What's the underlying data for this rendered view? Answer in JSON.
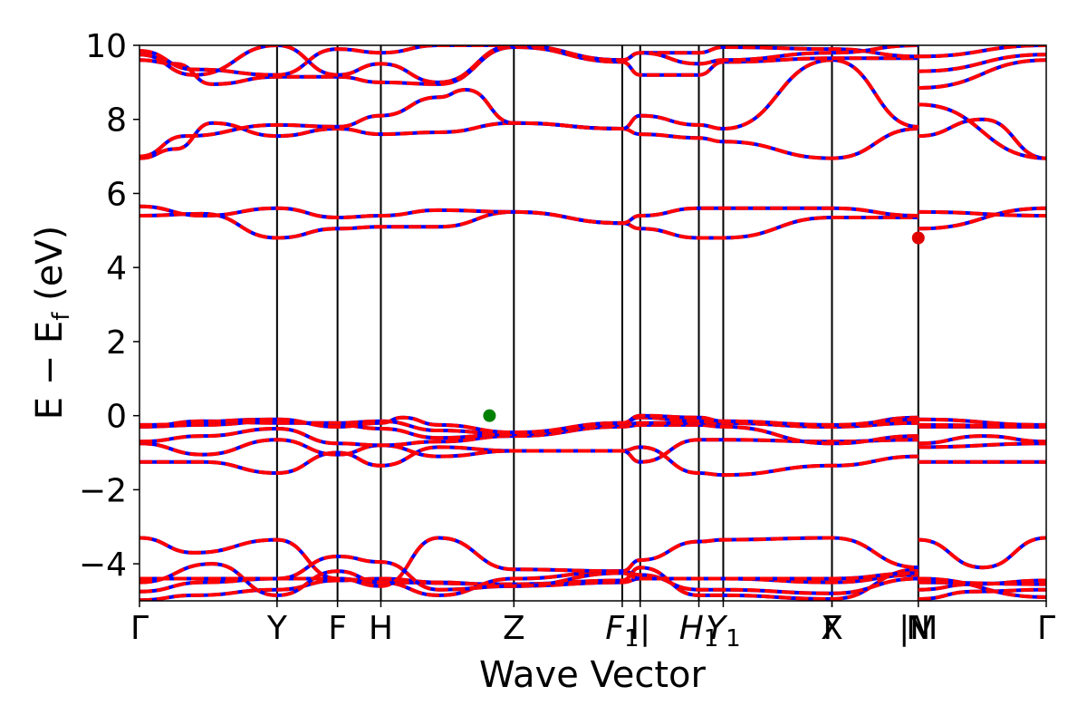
{
  "chart_data": {
    "type": "line",
    "xlabel": "Wave Vector",
    "ylabel_main": "E − E",
    "ylabel_sub": "f",
    "ylabel_unit": " (eV)",
    "ylim": [
      -5,
      10
    ],
    "yticks": [
      -4,
      -2,
      0,
      2,
      4,
      6,
      8,
      10
    ],
    "ytick_labels": [
      "−4",
      "−2",
      "0",
      "2",
      "4",
      "6",
      "8",
      "10"
    ],
    "grid": false,
    "x_range": [
      0,
      1
    ],
    "kpoints": [
      {
        "label": "Γ",
        "x": 0.0
      },
      {
        "label": "Y",
        "x": 0.1517
      },
      {
        "label": "F",
        "x": 0.2184
      },
      {
        "label": "H",
        "x": 0.2662
      },
      {
        "label": "Z",
        "x": 0.4129
      },
      {
        "label": "F",
        "sub": "1",
        "x": 0.5324
      },
      {
        "label": "I|",
        "x": 0.5522
      },
      {
        "label": "H",
        "sub": "1",
        "x": 0.6169
      },
      {
        "label": "Y",
        "sub": "1",
        "x": 0.6438
      },
      {
        "label": "X",
        "x": 0.7637
      },
      {
        "label": "Γ",
        "x": 0.7637
      },
      {
        "label": "N",
        "x": 0.8589
      },
      {
        "label": "|M",
        "x": 0.8589
      },
      {
        "label": "Γ",
        "x": 1.0
      }
    ],
    "vlines": [
      0.1517,
      0.2184,
      0.2662,
      0.4129,
      0.5324,
      0.5522,
      0.6169,
      0.6438,
      0.7637,
      0.8589
    ],
    "series_style": [
      {
        "color": "#0000ff",
        "style": "solid"
      },
      {
        "color": "#ff0000",
        "style": "dashed"
      }
    ],
    "bands": [
      [
        [
          0,
          -4.98
        ],
        [
          0.06,
          -4.85
        ],
        [
          0.1517,
          -4.7
        ],
        [
          0.2184,
          -4.45
        ],
        [
          0.2662,
          -4.4
        ],
        [
          0.33,
          -4.5
        ],
        [
          0.4129,
          -4.6
        ],
        [
          0.5324,
          -4.5
        ],
        [
          0.5522,
          -4.4
        ],
        [
          0.6169,
          -4.4
        ],
        [
          0.6438,
          -4.4
        ],
        [
          0.7637,
          -4.5
        ],
        [
          0.8589,
          -4.3
        ],
        [
          0.8589,
          -4.95
        ],
        [
          0.92,
          -4.75
        ],
        [
          1.0,
          -4.7
        ]
      ],
      [
        [
          0,
          -4.75
        ],
        [
          0.07,
          -4.5
        ],
        [
          0.1517,
          -4.4
        ],
        [
          0.2184,
          -4.4
        ],
        [
          0.2662,
          -4.5
        ],
        [
          0.4129,
          -4.55
        ],
        [
          0.5324,
          -4.45
        ],
        [
          0.5522,
          -4.1
        ],
        [
          0.6169,
          -4.85
        ],
        [
          0.6438,
          -4.85
        ],
        [
          0.7637,
          -4.95
        ],
        [
          0.8589,
          -4.15
        ],
        [
          0.8589,
          -4.7
        ],
        [
          0.92,
          -4.55
        ],
        [
          1.0,
          -4.45
        ]
      ],
      [
        [
          0,
          -4.5
        ],
        [
          0.08,
          -4.0
        ],
        [
          0.1517,
          -4.85
        ],
        [
          0.2184,
          -4.2
        ],
        [
          0.2662,
          -4.5
        ],
        [
          0.33,
          -4.85
        ],
        [
          0.4129,
          -4.4
        ],
        [
          0.5324,
          -4.2
        ],
        [
          0.5522,
          -4.3
        ],
        [
          0.6169,
          -4.7
        ],
        [
          0.6438,
          -4.7
        ],
        [
          0.7637,
          -4.8
        ],
        [
          0.8589,
          -4.4
        ],
        [
          0.8589,
          -4.4
        ],
        [
          1.0,
          -4.9
        ]
      ],
      [
        [
          0,
          -3.3
        ],
        [
          0.06,
          -3.7
        ],
        [
          0.1517,
          -3.35
        ],
        [
          0.2184,
          -4.4
        ],
        [
          0.2662,
          -4.6
        ],
        [
          0.33,
          -3.3
        ],
        [
          0.4129,
          -4.15
        ],
        [
          0.5324,
          -4.2
        ],
        [
          0.5522,
          -3.9
        ],
        [
          0.6169,
          -3.4
        ],
        [
          0.6438,
          -3.35
        ],
        [
          0.7637,
          -3.3
        ],
        [
          0.8589,
          -4.1
        ],
        [
          0.8589,
          -3.35
        ],
        [
          0.93,
          -4.1
        ],
        [
          1.0,
          -3.3
        ]
      ],
      [
        [
          0,
          -4.4
        ],
        [
          0.1517,
          -4.4
        ],
        [
          0.2184,
          -3.8
        ],
        [
          0.2662,
          -3.95
        ],
        [
          0.33,
          -4.7
        ],
        [
          0.4129,
          -4.6
        ],
        [
          0.5324,
          -4.25
        ],
        [
          0.5522,
          -4.4
        ],
        [
          0.6169,
          -4.4
        ],
        [
          0.6438,
          -4.4
        ],
        [
          0.7637,
          -4.4
        ],
        [
          0.8589,
          -4.25
        ],
        [
          0.8589,
          -4.5
        ],
        [
          1.0,
          -4.55
        ]
      ],
      [
        [
          0,
          -1.25
        ],
        [
          0.07,
          -1.25
        ],
        [
          0.1517,
          -1.55
        ],
        [
          0.2184,
          -1.0
        ],
        [
          0.2662,
          -1.35
        ],
        [
          0.33,
          -0.85
        ],
        [
          0.4129,
          -0.95
        ],
        [
          0.5324,
          -0.95
        ],
        [
          0.5522,
          -0.85
        ],
        [
          0.6169,
          -1.55
        ],
        [
          0.6438,
          -1.6
        ],
        [
          0.7637,
          -1.35
        ],
        [
          0.8589,
          -1.1
        ],
        [
          0.8589,
          -1.25
        ],
        [
          1.0,
          -1.25
        ]
      ],
      [
        [
          0,
          -0.75
        ],
        [
          0.07,
          -1.05
        ],
        [
          0.1517,
          -0.65
        ],
        [
          0.2184,
          -1.05
        ],
        [
          0.2662,
          -0.8
        ],
        [
          0.33,
          -1.1
        ],
        [
          0.4129,
          -0.95
        ],
        [
          0.5324,
          -0.95
        ],
        [
          0.5522,
          -1.25
        ],
        [
          0.6169,
          -0.65
        ],
        [
          0.6438,
          -0.65
        ],
        [
          0.7637,
          -0.7
        ],
        [
          0.8589,
          -0.65
        ],
        [
          0.8589,
          -0.75
        ],
        [
          0.93,
          -0.55
        ],
        [
          1.0,
          -0.7
        ]
      ],
      [
        [
          0,
          -0.7
        ],
        [
          0.07,
          -0.55
        ],
        [
          0.1517,
          -0.35
        ],
        [
          0.2184,
          -0.75
        ],
        [
          0.2662,
          -0.8
        ],
        [
          0.33,
          -0.7
        ],
        [
          0.4129,
          -0.55
        ],
        [
          0.5324,
          -0.3
        ],
        [
          0.5522,
          -0.25
        ],
        [
          0.6169,
          -0.25
        ],
        [
          0.6438,
          -0.3
        ],
        [
          0.7637,
          -0.75
        ],
        [
          0.8589,
          -0.55
        ],
        [
          0.8589,
          -0.85
        ],
        [
          1.0,
          -0.75
        ]
      ],
      [
        [
          0,
          -0.3
        ],
        [
          0.07,
          -0.25
        ],
        [
          0.1517,
          -0.15
        ],
        [
          0.2184,
          -0.25
        ],
        [
          0.2662,
          -0.35
        ],
        [
          0.33,
          -0.6
        ],
        [
          0.4129,
          -0.5
        ],
        [
          0.5324,
          -0.25
        ],
        [
          0.5522,
          -0.2
        ],
        [
          0.6169,
          -0.2
        ],
        [
          0.6438,
          -0.2
        ],
        [
          0.7637,
          -0.3
        ],
        [
          0.8589,
          -0.2
        ],
        [
          0.8589,
          -0.3
        ],
        [
          1.0,
          -0.3
        ]
      ],
      [
        [
          0,
          -0.3
        ],
        [
          0.07,
          -0.15
        ],
        [
          0.1517,
          -0.2
        ],
        [
          0.2184,
          -0.2
        ],
        [
          0.2662,
          -0.15
        ],
        [
          0.33,
          -0.4
        ],
        [
          0.4129,
          -0.5
        ],
        [
          0.5324,
          -0.2
        ],
        [
          0.5522,
          -0.05
        ],
        [
          0.6169,
          -0.15
        ],
        [
          0.6438,
          -0.2
        ],
        [
          0.7637,
          -0.3
        ],
        [
          0.8589,
          -0.05
        ],
        [
          0.8589,
          -0.25
        ],
        [
          1.0,
          -0.3
        ]
      ],
      [
        [
          0,
          -0.25
        ],
        [
          0.1517,
          -0.1
        ],
        [
          0.2184,
          -0.3
        ],
        [
          0.2662,
          -0.2
        ],
        [
          0.29,
          -0.05
        ],
        [
          0.33,
          -0.25
        ],
        [
          0.4129,
          -0.45
        ],
        [
          0.5324,
          -0.2
        ],
        [
          0.5522,
          0.0
        ],
        [
          0.6169,
          -0.05
        ],
        [
          0.6438,
          -0.15
        ],
        [
          0.7637,
          -0.25
        ],
        [
          0.8589,
          -0.1
        ],
        [
          0.8589,
          -0.1
        ],
        [
          1.0,
          -0.25
        ]
      ],
      [
        [
          0,
          5.4
        ],
        [
          0.07,
          5.45
        ],
        [
          0.1517,
          4.8
        ],
        [
          0.2184,
          5.05
        ],
        [
          0.2662,
          5.1
        ],
        [
          0.33,
          5.1
        ],
        [
          0.4129,
          5.5
        ],
        [
          0.5324,
          5.2
        ],
        [
          0.5522,
          5.05
        ],
        [
          0.6169,
          4.8
        ],
        [
          0.6438,
          4.8
        ],
        [
          0.7637,
          5.35
        ],
        [
          0.8589,
          5.35
        ],
        [
          0.8589,
          5.05
        ],
        [
          1.0,
          5.6
        ]
      ],
      [
        [
          0,
          5.65
        ],
        [
          0.07,
          5.4
        ],
        [
          0.1517,
          5.6
        ],
        [
          0.2184,
          5.35
        ],
        [
          0.2662,
          5.4
        ],
        [
          0.33,
          5.55
        ],
        [
          0.4129,
          5.5
        ],
        [
          0.5324,
          5.2
        ],
        [
          0.5522,
          5.4
        ],
        [
          0.6169,
          5.6
        ],
        [
          0.6438,
          5.6
        ],
        [
          0.7637,
          5.6
        ],
        [
          0.8589,
          5.4
        ],
        [
          0.8589,
          5.5
        ],
        [
          1.0,
          5.4
        ]
      ],
      [
        [
          0,
          6.95
        ],
        [
          0.04,
          7.2
        ],
        [
          0.08,
          7.9
        ],
        [
          0.1517,
          7.55
        ],
        [
          0.2184,
          7.75
        ],
        [
          0.2662,
          7.6
        ],
        [
          0.33,
          7.65
        ],
        [
          0.4129,
          7.9
        ],
        [
          0.5324,
          7.75
        ],
        [
          0.5522,
          7.6
        ],
        [
          0.6169,
          7.5
        ],
        [
          0.6438,
          7.4
        ],
        [
          0.7637,
          6.95
        ],
        [
          0.8589,
          7.75
        ],
        [
          0.8589,
          7.55
        ],
        [
          0.93,
          8.0
        ],
        [
          1.0,
          6.95
        ]
      ],
      [
        [
          0,
          7.0
        ],
        [
          0.05,
          7.55
        ],
        [
          0.1517,
          7.85
        ],
        [
          0.2184,
          7.8
        ],
        [
          0.2662,
          8.1
        ],
        [
          0.33,
          8.6
        ],
        [
          0.36,
          8.8
        ],
        [
          0.4129,
          7.9
        ],
        [
          0.5324,
          7.75
        ],
        [
          0.5522,
          8.1
        ],
        [
          0.6169,
          7.85
        ],
        [
          0.6438,
          7.75
        ],
        [
          0.7637,
          9.6
        ],
        [
          0.8589,
          7.8
        ],
        [
          0.8589,
          8.4
        ],
        [
          1.0,
          6.95
        ]
      ],
      [
        [
          0,
          9.6
        ],
        [
          0.04,
          9.5
        ],
        [
          0.08,
          8.95
        ],
        [
          0.1517,
          9.15
        ],
        [
          0.2184,
          9.15
        ],
        [
          0.2662,
          9.0
        ],
        [
          0.33,
          8.95
        ],
        [
          0.4129,
          9.95
        ],
        [
          0.5324,
          9.55
        ],
        [
          0.5522,
          9.2
        ],
        [
          0.6169,
          9.2
        ],
        [
          0.6438,
          9.55
        ],
        [
          0.7637,
          9.65
        ],
        [
          0.8589,
          9.65
        ],
        [
          0.8589,
          8.85
        ],
        [
          1.0,
          9.6
        ]
      ],
      [
        [
          0,
          9.85
        ],
        [
          0.06,
          9.35
        ],
        [
          0.1517,
          9.2
        ],
        [
          0.2184,
          9.9
        ],
        [
          0.2662,
          9.8
        ],
        [
          0.33,
          10.0
        ],
        [
          0.4129,
          10.0
        ],
        [
          0.5324,
          9.6
        ],
        [
          0.5522,
          9.8
        ],
        [
          0.6169,
          9.8
        ],
        [
          0.6438,
          9.95
        ],
        [
          0.7637,
          9.9
        ],
        [
          0.8589,
          9.7
        ],
        [
          0.8589,
          9.3
        ],
        [
          1.0,
          9.75
        ]
      ],
      [
        [
          0,
          9.75
        ],
        [
          0.06,
          9.2
        ],
        [
          0.1517,
          10.0
        ],
        [
          0.2184,
          9.2
        ],
        [
          0.2662,
          9.5
        ],
        [
          0.33,
          9.0
        ],
        [
          0.4129,
          10.0
        ],
        [
          0.5324,
          9.6
        ],
        [
          0.5522,
          9.8
        ],
        [
          0.6169,
          9.5
        ],
        [
          0.6438,
          9.6
        ],
        [
          0.7637,
          9.8
        ],
        [
          0.8589,
          10.0
        ],
        [
          0.8589,
          9.7
        ],
        [
          1.0,
          10.0
        ]
      ]
    ],
    "markers": [
      {
        "x": 0.386,
        "y": 0.0,
        "color": "#008000"
      },
      {
        "x": 0.8589,
        "y": 4.8,
        "color": "#e00000"
      }
    ]
  }
}
